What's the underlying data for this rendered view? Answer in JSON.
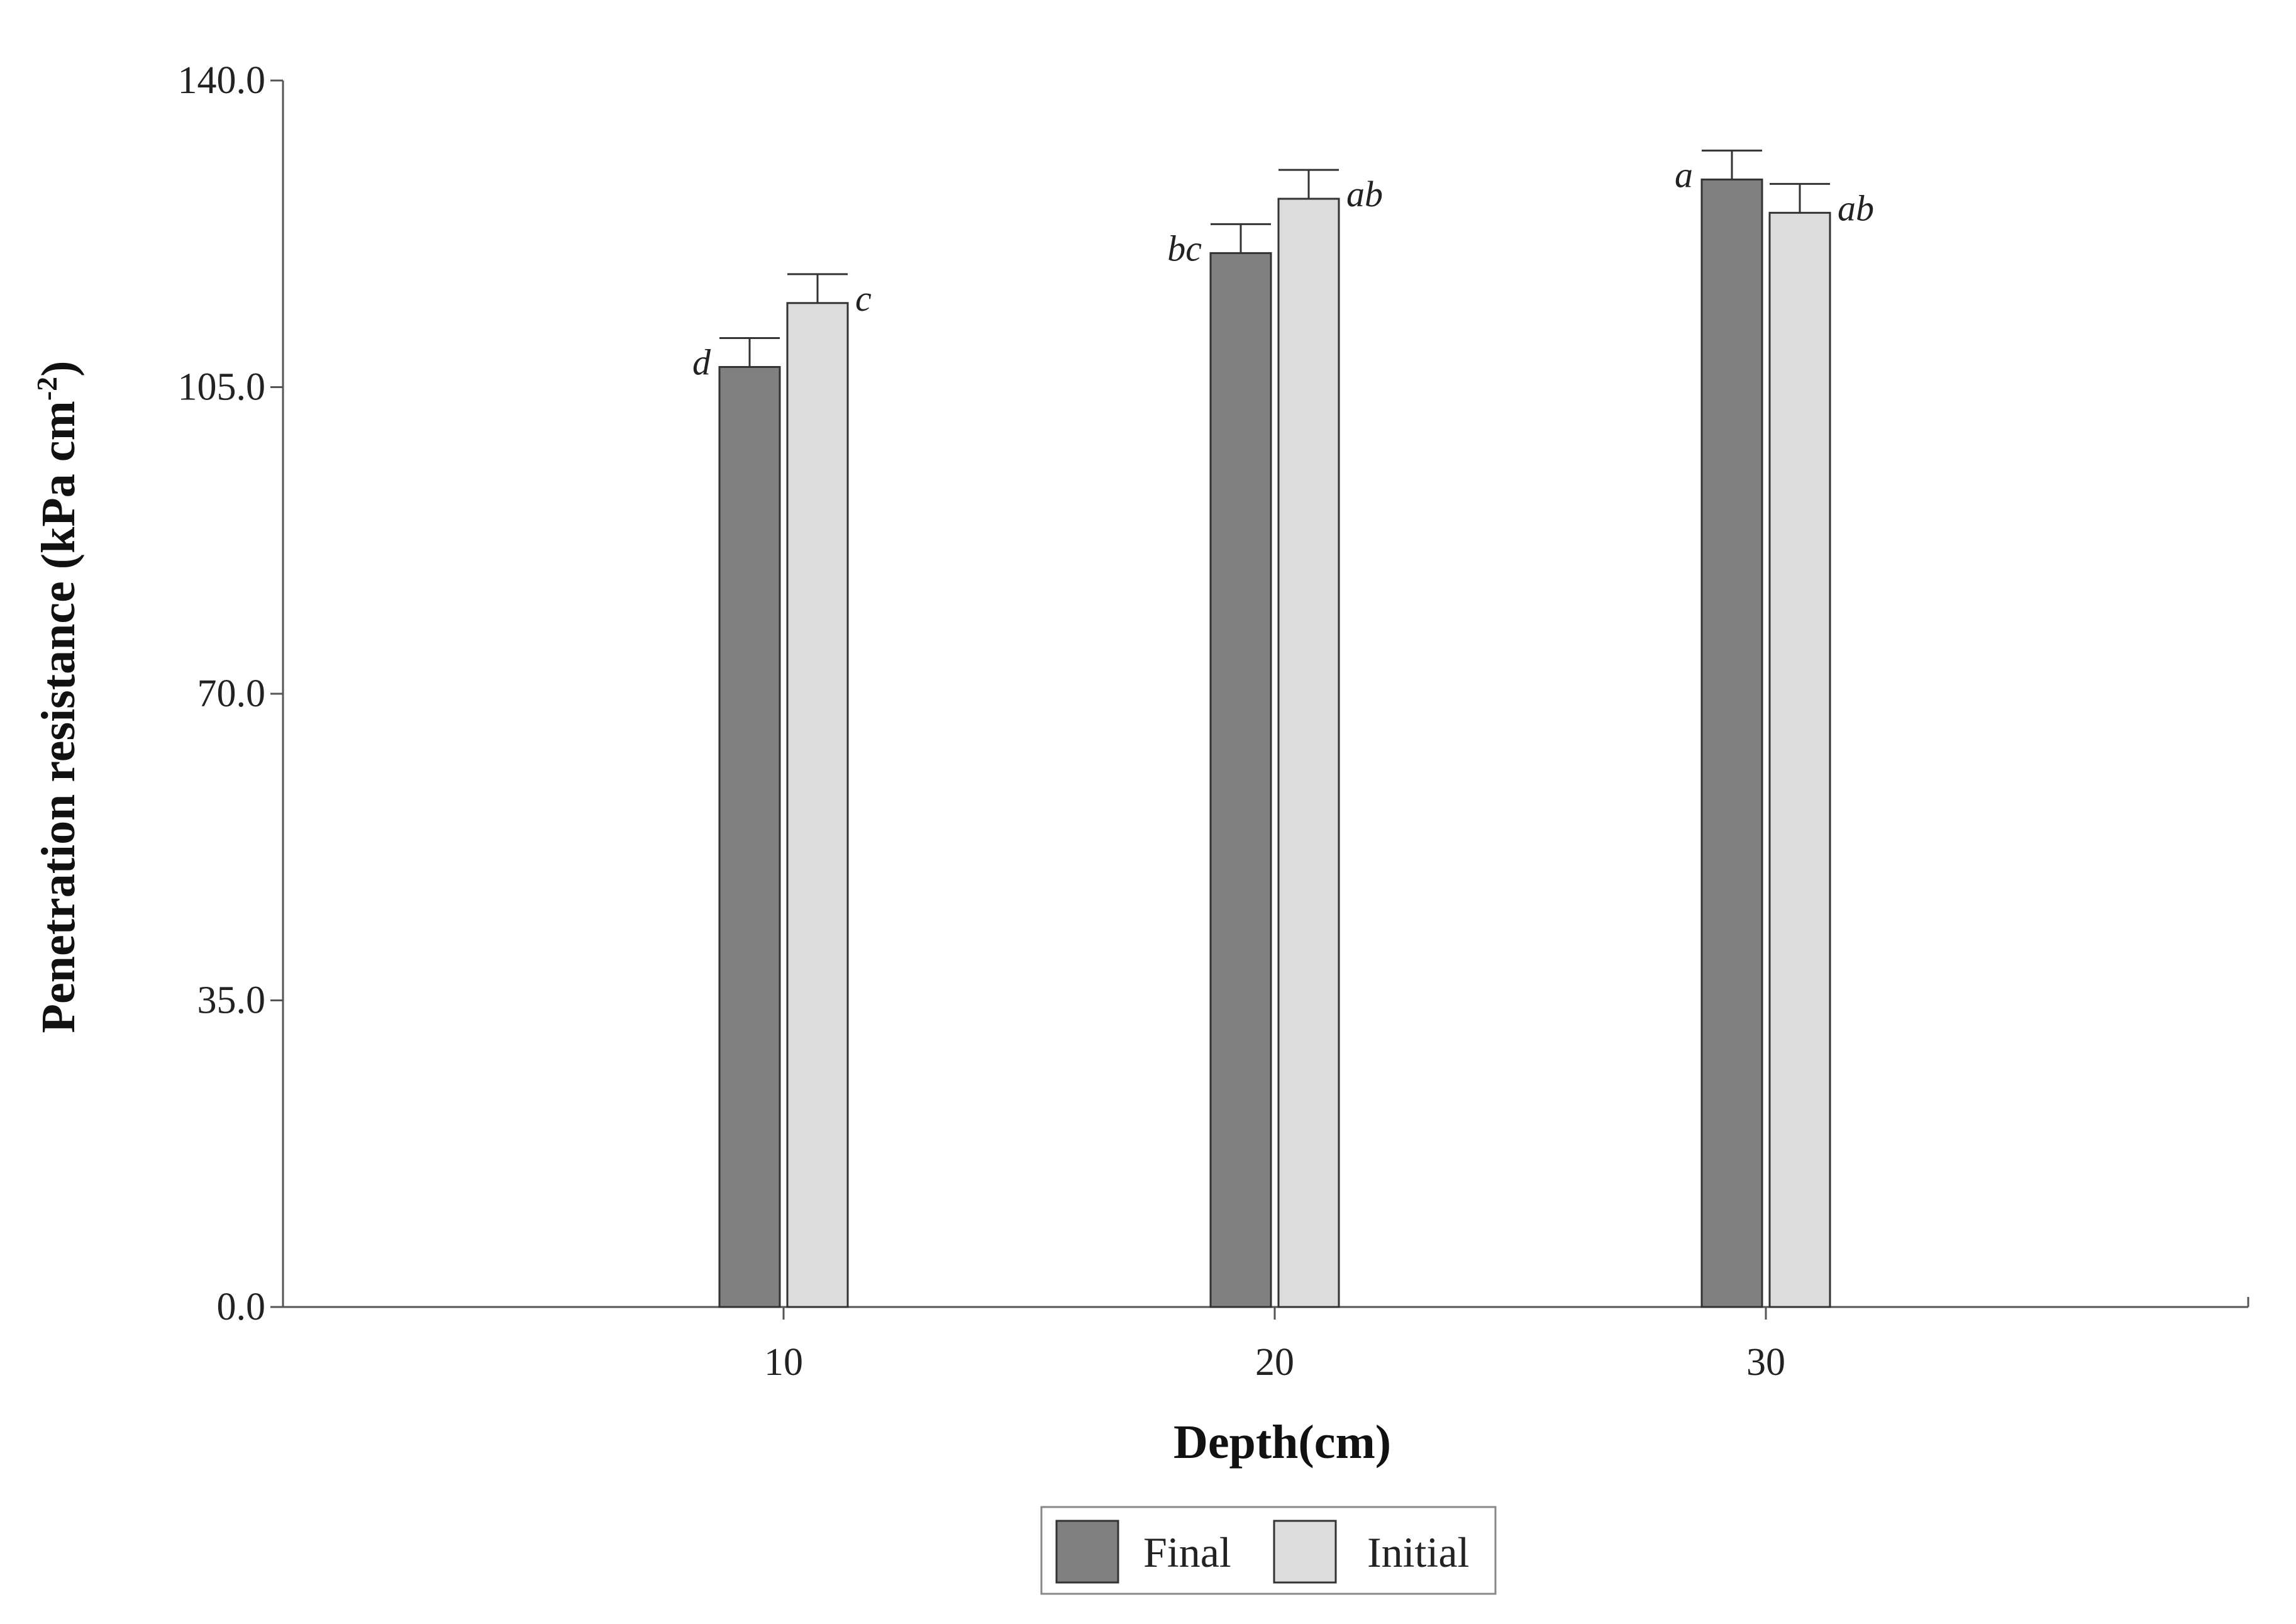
{
  "chart_data": {
    "type": "bar",
    "xlabel": "Depth(cm)",
    "ylabel_main": "Penetration resistance (kPa cm",
    "ylabel_sup": "-2",
    "ylabel_end": ")",
    "ylim": [
      0,
      140
    ],
    "yticks": [
      "0.0",
      "35.0",
      "70.0",
      "105.0",
      "140.0"
    ],
    "categories": [
      "10",
      "20",
      "30"
    ],
    "series": [
      {
        "name": "Final",
        "color": "#808080",
        "values": [
          107.3,
          120.3,
          128.7
        ],
        "errors": [
          3.3,
          3.3,
          3.3
        ],
        "labels": [
          "d",
          "bc",
          "a"
        ]
      },
      {
        "name": "Initial",
        "color": "#dcdcdc",
        "values": [
          114.6,
          126.5,
          124.9
        ],
        "errors": [
          3.3,
          3.3,
          3.3
        ],
        "labels": [
          "c",
          "ab",
          "ab"
        ]
      }
    ],
    "grid": false,
    "legend_position": "bottom-center"
  }
}
